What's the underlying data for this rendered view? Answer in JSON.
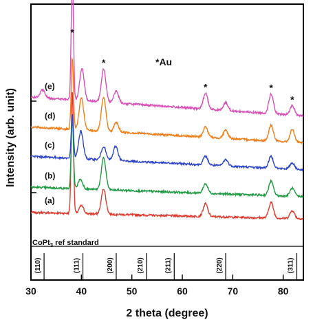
{
  "chart_data": {
    "type": "line",
    "xlabel": "2 theta (degree)",
    "ylabel": "Intensity (arb. unit)",
    "xlim": [
      30,
      84
    ],
    "x_ticks": [
      30,
      40,
      50,
      60,
      70,
      80
    ],
    "ytick_count": 2,
    "grid": false,
    "legend": "top-center",
    "legend_text": "*Au",
    "gold_marker": "*",
    "gold_peaks_2theta": [
      38.2,
      44.4,
      64.6,
      77.6,
      81.8
    ],
    "reference": {
      "label_main": "CoPt",
      "label_sub": "3",
      "label_tail": " ref  standard",
      "lines": [
        {
          "label": "(110)",
          "pos": 32.6
        },
        {
          "label": "(111)",
          "pos": 40.3
        },
        {
          "label": "(200)",
          "pos": 46.9
        },
        {
          "label": "(210)",
          "pos": 52.9
        },
        {
          "label": "(211)",
          "pos": 58.4
        },
        {
          "label": "(220)",
          "pos": 68.6
        },
        {
          "label": "(311)",
          "pos": 82.7
        }
      ]
    },
    "series": [
      {
        "name": "(a)",
        "color": "#e03a2f",
        "baseline": 0.0,
        "slope": 0.08,
        "peaks": [
          {
            "pos": 38.2,
            "height": 1.55
          },
          {
            "pos": 40.0,
            "height": 0.1
          },
          {
            "pos": 44.4,
            "height": 0.32
          },
          {
            "pos": 64.6,
            "height": 0.16
          },
          {
            "pos": 77.6,
            "height": 0.2
          },
          {
            "pos": 81.8,
            "height": 0.1
          }
        ]
      },
      {
        "name": "(b)",
        "color": "#1f9a43",
        "baseline": 0.28,
        "slope": 0.12,
        "peaks": [
          {
            "pos": 38.2,
            "height": 0.9
          },
          {
            "pos": 39.8,
            "height": 0.12
          },
          {
            "pos": 44.4,
            "height": 0.4
          },
          {
            "pos": 64.6,
            "height": 0.12
          },
          {
            "pos": 77.6,
            "height": 0.18
          },
          {
            "pos": 81.8,
            "height": 0.1
          }
        ]
      },
      {
        "name": "(c)",
        "color": "#2e44c9",
        "baseline": 0.62,
        "slope": 0.17,
        "peaks": [
          {
            "pos": 38.2,
            "height": 0.55
          },
          {
            "pos": 39.9,
            "height": 0.35
          },
          {
            "pos": 44.4,
            "height": 0.17
          },
          {
            "pos": 46.8,
            "height": 0.18
          },
          {
            "pos": 64.6,
            "height": 0.11
          },
          {
            "pos": 68.6,
            "height": 0.08
          },
          {
            "pos": 77.6,
            "height": 0.15
          },
          {
            "pos": 81.8,
            "height": 0.08
          }
        ]
      },
      {
        "name": "(d)",
        "color": "#f07d1a",
        "baseline": 0.96,
        "slope": 0.2,
        "peaks": [
          {
            "pos": 38.2,
            "height": 0.9
          },
          {
            "pos": 40.0,
            "height": 0.4
          },
          {
            "pos": 44.4,
            "height": 0.42
          },
          {
            "pos": 46.9,
            "height": 0.12
          },
          {
            "pos": 64.6,
            "height": 0.13
          },
          {
            "pos": 68.6,
            "height": 0.1
          },
          {
            "pos": 77.6,
            "height": 0.2
          },
          {
            "pos": 81.8,
            "height": 0.16
          }
        ]
      },
      {
        "name": "(e)",
        "color": "#d94fb5",
        "baseline": 1.3,
        "slope": 0.24,
        "peaks": [
          {
            "pos": 32.3,
            "height": 0.1
          },
          {
            "pos": 38.2,
            "height": 1.6
          },
          {
            "pos": 40.1,
            "height": 0.4
          },
          {
            "pos": 44.4,
            "height": 0.42
          },
          {
            "pos": 46.9,
            "height": 0.15
          },
          {
            "pos": 64.6,
            "height": 0.2
          },
          {
            "pos": 68.6,
            "height": 0.1
          },
          {
            "pos": 77.6,
            "height": 0.25
          },
          {
            "pos": 81.8,
            "height": 0.12
          }
        ]
      }
    ]
  }
}
